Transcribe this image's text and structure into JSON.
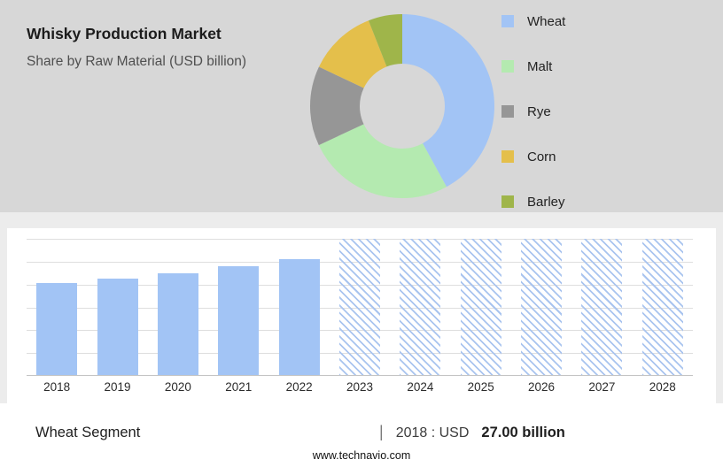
{
  "header": {
    "title": "Whisky Production Market",
    "subtitle": "Share by Raw Material (USD billion)"
  },
  "colors": {
    "wheat_blue": "#a2c4f5",
    "malt_green": "#b4eab0",
    "rye_gray": "#969696",
    "corn_yellow": "#e4bf4b",
    "barley_olive": "#9fb54a",
    "top_band_bg": "#d7d7d7",
    "panel_bg": "#ffffff"
  },
  "footer": {
    "segment_label": "Wheat Segment",
    "separator": "|",
    "value_prefix": "2018 : USD",
    "value_bold": "27.00 billion"
  },
  "website": "www.technavio.com",
  "chart_data": [
    {
      "type": "pie",
      "donut": true,
      "title": "Whisky Production Market Share by Raw Material (USD billion)",
      "labels": [
        "Wheat",
        "Malt",
        "Rye",
        "Corn",
        "Barley"
      ],
      "values": [
        42,
        26,
        14,
        12,
        6
      ],
      "colors": [
        "#a2c4f5",
        "#b4eab0",
        "#969696",
        "#e4bf4b",
        "#9fb54a"
      ],
      "legend_position": "right"
    },
    {
      "type": "bar",
      "categories": [
        "2018",
        "2019",
        "2020",
        "2021",
        "2022",
        "2023",
        "2024",
        "2025",
        "2026",
        "2027",
        "2028"
      ],
      "series": [
        {
          "name": "Wheat segment size (USD billion)",
          "values": [
            27,
            28.5,
            30,
            32,
            34,
            null,
            null,
            null,
            null,
            null,
            null
          ]
        }
      ],
      "forecast": [
        false,
        false,
        false,
        false,
        false,
        true,
        true,
        true,
        true,
        true,
        true
      ],
      "ylim": [
        0,
        40
      ],
      "grid": true,
      "bar_color": "#a2c4f5",
      "forecast_style": "hatched",
      "annotation": "2018 : USD 27.00 billion"
    }
  ]
}
